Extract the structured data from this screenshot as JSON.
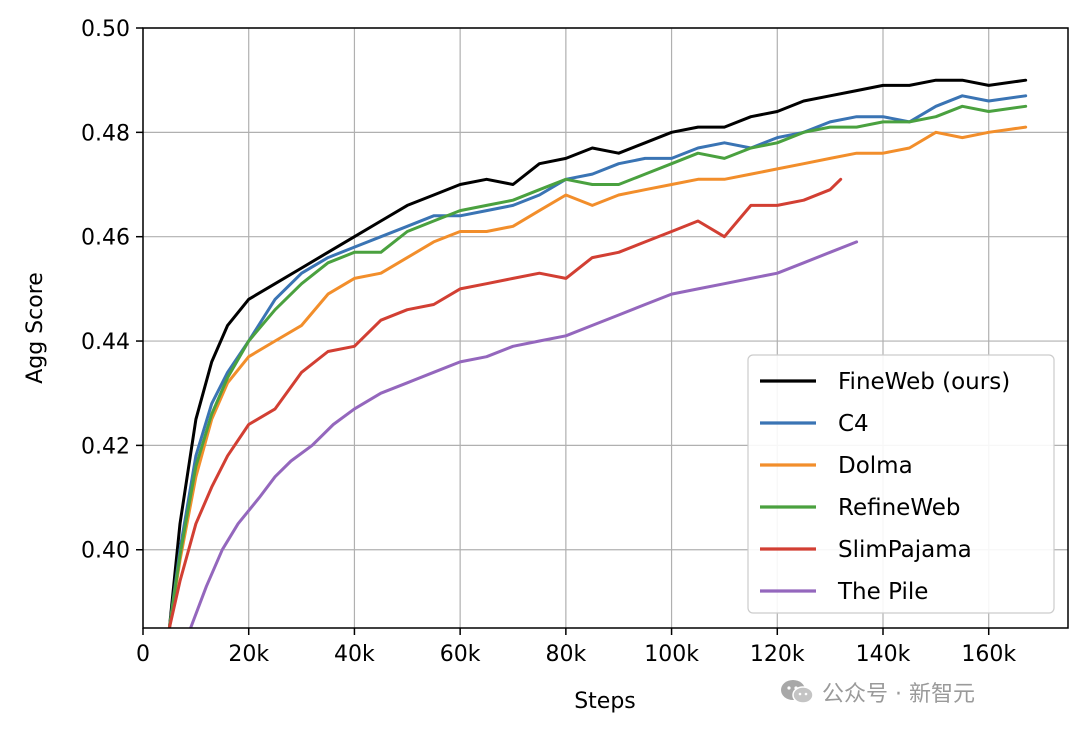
{
  "chart_data": {
    "type": "line",
    "xlabel": "Steps",
    "ylabel": "Agg Score",
    "xlim": [
      0,
      175000
    ],
    "ylim": [
      0.385,
      0.5
    ],
    "xticks": [
      0,
      20000,
      40000,
      60000,
      80000,
      100000,
      120000,
      140000,
      160000
    ],
    "xtick_labels": [
      "0",
      "20k",
      "40k",
      "60k",
      "80k",
      "100k",
      "120k",
      "140k",
      "160k"
    ],
    "yticks": [
      0.4,
      0.42,
      0.44,
      0.46,
      0.48,
      0.5
    ],
    "ytick_labels": [
      "0.40",
      "0.42",
      "0.44",
      "0.46",
      "0.48",
      "0.50"
    ],
    "grid": true,
    "legend_position": "lower-right",
    "series": [
      {
        "name": "FineWeb (ours)",
        "color": "#000000",
        "x": [
          5000,
          7000,
          10000,
          13000,
          16000,
          20000,
          25000,
          30000,
          35000,
          40000,
          45000,
          50000,
          55000,
          60000,
          65000,
          70000,
          75000,
          80000,
          85000,
          90000,
          95000,
          100000,
          105000,
          110000,
          115000,
          120000,
          125000,
          130000,
          135000,
          140000,
          145000,
          150000,
          155000,
          160000,
          167000
        ],
        "y": [
          0.385,
          0.405,
          0.425,
          0.436,
          0.443,
          0.448,
          0.451,
          0.454,
          0.457,
          0.46,
          0.463,
          0.466,
          0.468,
          0.47,
          0.471,
          0.47,
          0.474,
          0.475,
          0.477,
          0.476,
          0.478,
          0.48,
          0.481,
          0.481,
          0.483,
          0.484,
          0.486,
          0.487,
          0.488,
          0.489,
          0.489,
          0.49,
          0.49,
          0.489,
          0.49
        ]
      },
      {
        "name": "C4",
        "color": "#3a74b4",
        "x": [
          5000,
          7000,
          10000,
          13000,
          16000,
          20000,
          25000,
          30000,
          35000,
          40000,
          45000,
          50000,
          55000,
          60000,
          65000,
          70000,
          75000,
          80000,
          85000,
          90000,
          95000,
          100000,
          105000,
          110000,
          115000,
          120000,
          125000,
          130000,
          135000,
          140000,
          145000,
          150000,
          155000,
          160000,
          167000
        ],
        "y": [
          0.385,
          0.4,
          0.418,
          0.428,
          0.434,
          0.44,
          0.448,
          0.453,
          0.456,
          0.458,
          0.46,
          0.462,
          0.464,
          0.464,
          0.465,
          0.466,
          0.468,
          0.471,
          0.472,
          0.474,
          0.475,
          0.475,
          0.477,
          0.478,
          0.477,
          0.479,
          0.48,
          0.482,
          0.483,
          0.483,
          0.482,
          0.485,
          0.487,
          0.486,
          0.487
        ]
      },
      {
        "name": "Dolma",
        "color": "#f28e2b",
        "x": [
          5000,
          7000,
          10000,
          13000,
          16000,
          20000,
          25000,
          30000,
          35000,
          40000,
          45000,
          50000,
          55000,
          60000,
          65000,
          70000,
          75000,
          80000,
          85000,
          90000,
          95000,
          100000,
          105000,
          110000,
          115000,
          120000,
          125000,
          130000,
          135000,
          140000,
          145000,
          150000,
          155000,
          160000,
          167000
        ],
        "y": [
          0.385,
          0.398,
          0.414,
          0.425,
          0.432,
          0.437,
          0.44,
          0.443,
          0.449,
          0.452,
          0.453,
          0.456,
          0.459,
          0.461,
          0.461,
          0.462,
          0.465,
          0.468,
          0.466,
          0.468,
          0.469,
          0.47,
          0.471,
          0.471,
          0.472,
          0.473,
          0.474,
          0.475,
          0.476,
          0.476,
          0.477,
          0.48,
          0.479,
          0.48,
          0.481
        ]
      },
      {
        "name": "RefineWeb",
        "color": "#4aa13f",
        "x": [
          5000,
          7000,
          10000,
          13000,
          16000,
          20000,
          25000,
          30000,
          35000,
          40000,
          45000,
          50000,
          55000,
          60000,
          65000,
          70000,
          75000,
          80000,
          85000,
          90000,
          95000,
          100000,
          105000,
          110000,
          115000,
          120000,
          125000,
          130000,
          135000,
          140000,
          145000,
          150000,
          155000,
          160000,
          167000
        ],
        "y": [
          0.385,
          0.399,
          0.416,
          0.426,
          0.433,
          0.44,
          0.446,
          0.451,
          0.455,
          0.457,
          0.457,
          0.461,
          0.463,
          0.465,
          0.466,
          0.467,
          0.469,
          0.471,
          0.47,
          0.47,
          0.472,
          0.474,
          0.476,
          0.475,
          0.477,
          0.478,
          0.48,
          0.481,
          0.481,
          0.482,
          0.482,
          0.483,
          0.485,
          0.484,
          0.485
        ]
      },
      {
        "name": "SlimPajama",
        "color": "#d23f33",
        "x": [
          5000,
          7000,
          10000,
          13000,
          16000,
          20000,
          25000,
          30000,
          35000,
          40000,
          45000,
          50000,
          55000,
          60000,
          65000,
          70000,
          75000,
          80000,
          85000,
          90000,
          95000,
          100000,
          105000,
          110000,
          115000,
          120000,
          125000,
          130000,
          132000
        ],
        "y": [
          0.385,
          0.394,
          0.405,
          0.412,
          0.418,
          0.424,
          0.427,
          0.434,
          0.438,
          0.439,
          0.444,
          0.446,
          0.447,
          0.45,
          0.451,
          0.452,
          0.453,
          0.452,
          0.456,
          0.457,
          0.459,
          0.461,
          0.463,
          0.46,
          0.466,
          0.466,
          0.467,
          0.469,
          0.471
        ]
      },
      {
        "name": "The Pile",
        "color": "#9467bd",
        "x": [
          9000,
          12000,
          15000,
          18000,
          22000,
          25000,
          28000,
          32000,
          36000,
          40000,
          45000,
          50000,
          55000,
          60000,
          65000,
          70000,
          75000,
          80000,
          85000,
          90000,
          95000,
          100000,
          105000,
          110000,
          115000,
          120000,
          125000,
          130000,
          135000
        ],
        "y": [
          0.385,
          0.393,
          0.4,
          0.405,
          0.41,
          0.414,
          0.417,
          0.42,
          0.424,
          0.427,
          0.43,
          0.432,
          0.434,
          0.436,
          0.437,
          0.439,
          0.44,
          0.441,
          0.443,
          0.445,
          0.447,
          0.449,
          0.45,
          0.451,
          0.452,
          0.453,
          0.455,
          0.457,
          0.459
        ]
      }
    ]
  },
  "watermark": {
    "text": "公众号 · 新智元",
    "icon": "wechat-icon"
  }
}
